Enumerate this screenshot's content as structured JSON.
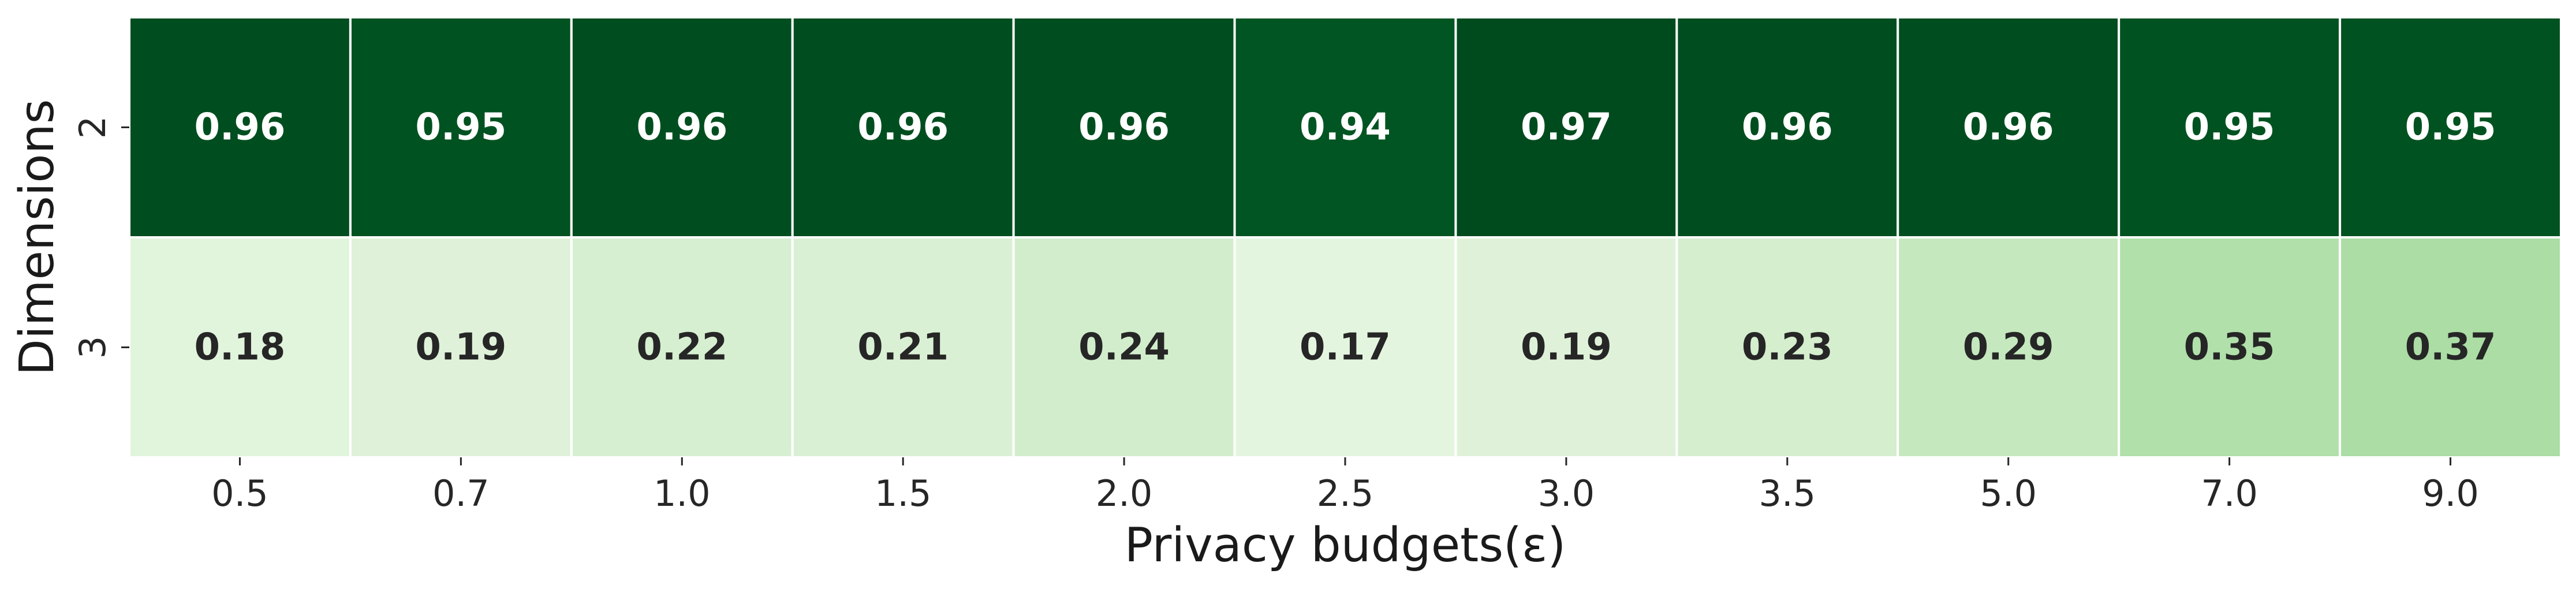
{
  "chart_data": {
    "type": "heatmap",
    "title": "",
    "xlabel": "Privacy budgets(ε)",
    "ylabel": "Dimensions",
    "x_categories": [
      "0.5",
      "0.7",
      "1.0",
      "1.5",
      "2.0",
      "2.5",
      "3.0",
      "3.5",
      "5.0",
      "7.0",
      "9.0"
    ],
    "y_categories": [
      "2",
      "3"
    ],
    "values": [
      [
        0.96,
        0.95,
        0.96,
        0.96,
        0.96,
        0.94,
        0.97,
        0.96,
        0.96,
        0.95,
        0.95
      ],
      [
        0.18,
        0.19,
        0.22,
        0.21,
        0.24,
        0.17,
        0.19,
        0.23,
        0.29,
        0.35,
        0.37
      ]
    ],
    "value_labels": [
      [
        "0.96",
        "0.95",
        "0.96",
        "0.96",
        "0.96",
        "0.94",
        "0.97",
        "0.96",
        "0.96",
        "0.95",
        "0.95"
      ],
      [
        "0.18",
        "0.19",
        "0.22",
        "0.21",
        "0.24",
        "0.17",
        "0.19",
        "0.23",
        "0.29",
        "0.35",
        "0.37"
      ]
    ],
    "colormap": "Greens",
    "grid": true,
    "legend": "none"
  }
}
